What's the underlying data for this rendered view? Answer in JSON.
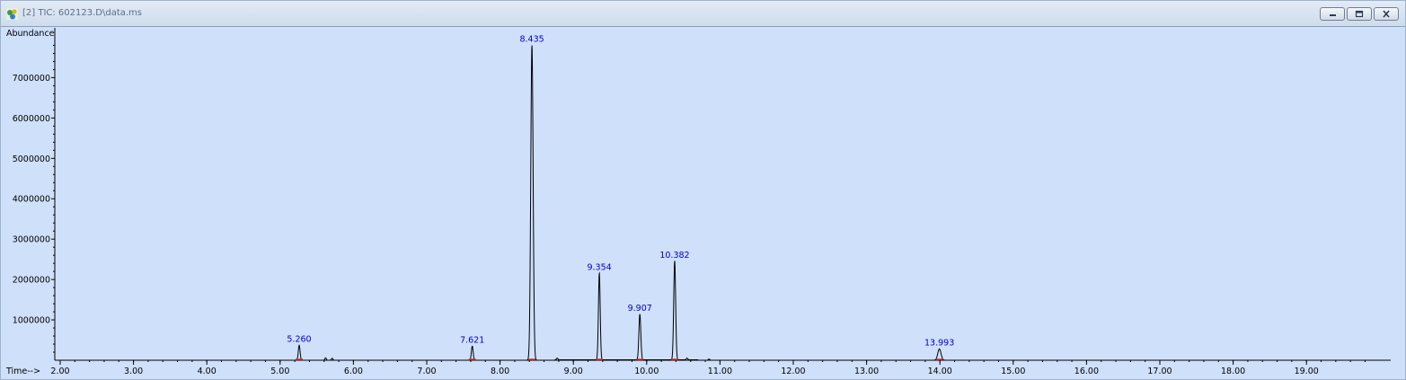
{
  "window": {
    "title": "[2] TIC: 602123.D\\data.ms",
    "controls": [
      "minimize-icon",
      "restore-icon",
      "close-icon"
    ],
    "background_color": "#cfe0fa"
  },
  "chart_data": {
    "type": "line",
    "ylabel": "Abundance",
    "xlabel": "Time-->",
    "xlim": [
      1.95,
      20.0
    ],
    "ylim": [
      0,
      8100000
    ],
    "x_ticks": [
      "2.00",
      "3.00",
      "4.00",
      "5.00",
      "6.00",
      "7.00",
      "8.00",
      "9.00",
      "10.00",
      "11.00",
      "12.00",
      "13.00",
      "14.00",
      "15.00",
      "16.00",
      "17.00",
      "18.00",
      "19.00"
    ],
    "y_ticks": [
      "1000000",
      "2000000",
      "3000000",
      "4000000",
      "5000000",
      "6000000",
      "7000000"
    ],
    "y_tick_values": [
      1000000,
      2000000,
      3000000,
      4000000,
      5000000,
      6000000,
      7000000
    ],
    "line_color": "#000000",
    "label_color": "#0000cc",
    "baseline_mark_color": "#e03030",
    "peaks": [
      {
        "rt": 5.26,
        "label": "5.260",
        "height": 370000,
        "width": 0.012
      },
      {
        "rt": 7.621,
        "label": "7.621",
        "height": 350000,
        "width": 0.012
      },
      {
        "rt": 8.435,
        "label": "8.435",
        "height": 7800000,
        "width": 0.016
      },
      {
        "rt": 9.354,
        "label": "9.354",
        "height": 2150000,
        "width": 0.012
      },
      {
        "rt": 9.907,
        "label": "9.907",
        "height": 1130000,
        "width": 0.013
      },
      {
        "rt": 10.382,
        "label": "10.382",
        "height": 2450000,
        "width": 0.013
      },
      {
        "rt": 13.993,
        "label": "13.993",
        "height": 280000,
        "width": 0.022
      }
    ],
    "minor_features": [
      {
        "rt": 5.62,
        "height": 60000
      },
      {
        "rt": 5.71,
        "height": 50000
      },
      {
        "rt": 8.78,
        "height": 40000
      },
      {
        "rt": 10.55,
        "height": 40000
      },
      {
        "rt": 10.85,
        "height": 30000
      }
    ]
  }
}
